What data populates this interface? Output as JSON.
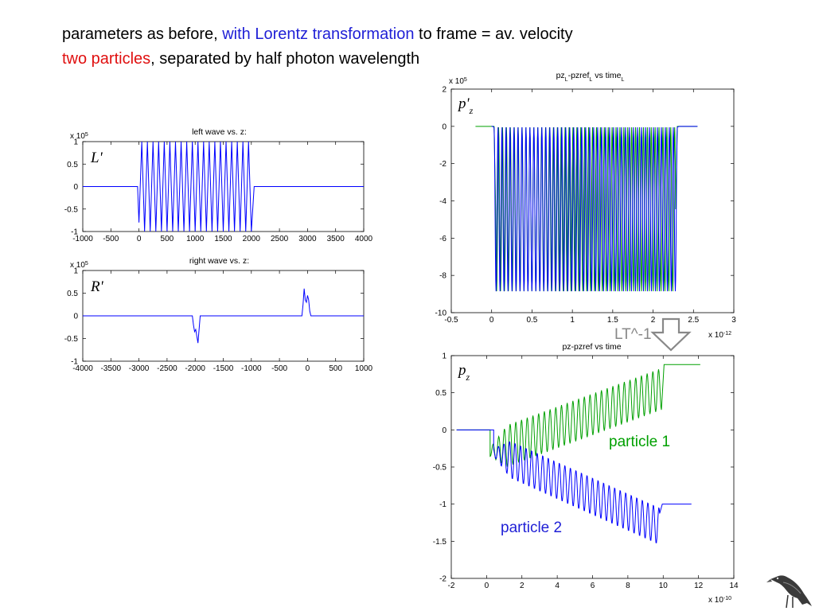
{
  "heading": {
    "line1_a": "parameters as before, ",
    "line1_b": "with Lorentz transformation",
    "line1_c": " to frame = av. velocity",
    "line2_a": "two particles",
    "line2_b": ", separated by half photon wavelength"
  },
  "annotations": {
    "lt_arrow_label": "LT^-1",
    "particle1": "particle 1",
    "particle2": "particle 2"
  },
  "colors": {
    "blue_series": "#0000ff",
    "green_series": "#00a000",
    "heading_blue": "#1f1fd6",
    "heading_red": "#e01010",
    "arrow": "#888888"
  },
  "chart_data": [
    {
      "id": "left",
      "type": "line",
      "title": "left wave vs. z:",
      "inset_label": "L'",
      "exponent": "x 10^5",
      "xlim": [
        -1000,
        4000
      ],
      "ylim": [
        -1,
        1
      ],
      "xticks": [
        -1000,
        -500,
        0,
        500,
        1000,
        1500,
        2000,
        2500,
        3000,
        3500,
        4000
      ],
      "yticks": [
        1,
        0.5,
        0,
        -0.5,
        -1
      ],
      "series": [
        {
          "color": "#0000ff",
          "points": [
            [
              -1000,
              0
            ],
            [
              -25,
              0
            ],
            [
              0,
              -0.8
            ],
            [
              50,
              1
            ],
            [
              100,
              -1
            ],
            [
              150,
              1
            ],
            [
              200,
              -1
            ],
            [
              250,
              1
            ],
            [
              300,
              -1
            ],
            [
              350,
              1
            ],
            [
              400,
              -1
            ],
            [
              450,
              1
            ],
            [
              500,
              -1
            ],
            [
              550,
              1
            ],
            [
              600,
              -1
            ],
            [
              650,
              1
            ],
            [
              700,
              -1
            ],
            [
              750,
              1
            ],
            [
              800,
              -1
            ],
            [
              850,
              1
            ],
            [
              900,
              -1
            ],
            [
              950,
              1
            ],
            [
              1000,
              -1
            ],
            [
              1050,
              1
            ],
            [
              1100,
              -1
            ],
            [
              1150,
              1
            ],
            [
              1200,
              -1
            ],
            [
              1250,
              1
            ],
            [
              1300,
              -1
            ],
            [
              1350,
              1
            ],
            [
              1400,
              -1
            ],
            [
              1450,
              1
            ],
            [
              1500,
              -1
            ],
            [
              1550,
              1
            ],
            [
              1600,
              -1
            ],
            [
              1650,
              1
            ],
            [
              1700,
              -1
            ],
            [
              1750,
              1
            ],
            [
              1800,
              -1
            ],
            [
              1850,
              1
            ],
            [
              1900,
              -1
            ],
            [
              1950,
              1
            ],
            [
              2000,
              -1
            ],
            [
              2050,
              0
            ],
            [
              4000,
              0
            ]
          ]
        }
      ]
    },
    {
      "id": "right",
      "type": "line",
      "title": "right wave vs. z:",
      "inset_label": "R'",
      "exponent": "x 10^5",
      "xlim": [
        -4000,
        1000
      ],
      "ylim": [
        -1,
        1
      ],
      "xticks": [
        -4000,
        -3500,
        -3000,
        -2500,
        -2000,
        -1500,
        -1000,
        -500,
        0,
        500,
        1000
      ],
      "yticks": [
        1,
        0.5,
        0,
        -0.5,
        -1
      ],
      "series": [
        {
          "color": "#0000ff",
          "points": [
            [
              -4000,
              0
            ],
            [
              -2050,
              0
            ],
            [
              -2030,
              -0.2
            ],
            [
              -2010,
              -0.35
            ],
            [
              -1990,
              -0.3
            ],
            [
              -1970,
              -0.45
            ],
            [
              -1950,
              -0.6
            ],
            [
              -1930,
              -0.3
            ],
            [
              -1910,
              0
            ],
            [
              -100,
              0
            ],
            [
              -80,
              0.25
            ],
            [
              -60,
              0.6
            ],
            [
              -40,
              0.35
            ],
            [
              -20,
              0.3
            ],
            [
              0,
              0.45
            ],
            [
              20,
              0.35
            ],
            [
              40,
              0.1
            ],
            [
              60,
              0
            ],
            [
              1000,
              0
            ]
          ]
        }
      ]
    },
    {
      "id": "top-right",
      "type": "line",
      "title": "pzL-pzrefL vs timeL",
      "inset_label": "p'z",
      "exponent": "x 10^5",
      "x_exponent": "x 10^-12",
      "xlim": [
        -0.5,
        3
      ],
      "ylim": [
        -10,
        2
      ],
      "xticks": [
        -0.5,
        0,
        0.5,
        1,
        1.5,
        2,
        2.5,
        3
      ],
      "yticks": [
        2,
        0,
        -2,
        -4,
        -6,
        -8,
        -10
      ],
      "series": [
        {
          "color": "#00a000",
          "points": [
            [
              -0.2,
              0
            ],
            [
              0,
              0
            ],
            [
              0.05,
              -8.9
            ],
            [
              2.25,
              -8.9
            ],
            [
              2.3,
              0
            ],
            [
              2.55,
              0
            ]
          ],
          "oscillating": {
            "x0": 0.05,
            "x1": 2.28,
            "cycles": 46,
            "phase": 0.5,
            "envelope": "green"
          }
        },
        {
          "color": "#0000ff",
          "points": [
            [
              0.02,
              0
            ],
            [
              0.05,
              -8.9
            ],
            [
              2.25,
              -8.9
            ],
            [
              2.3,
              0
            ],
            [
              2.55,
              0
            ]
          ],
          "oscillating": {
            "x0": 0.03,
            "x1": 2.3,
            "cycles": 46,
            "phase": 0.0,
            "envelope": "blue"
          }
        }
      ]
    },
    {
      "id": "bottom-right",
      "type": "line",
      "title": "pz-pzref vs time",
      "inset_label": "pz",
      "x_exponent": "x 10^-10",
      "xlim": [
        -2,
        14
      ],
      "ylim": [
        -2,
        1
      ],
      "xticks": [
        -2,
        0,
        2,
        4,
        6,
        8,
        10,
        12,
        14
      ],
      "yticks": [
        1,
        0.5,
        0,
        -0.5,
        -1,
        -1.5,
        -2
      ],
      "series": [
        {
          "name": "particle 1",
          "color": "#00a000",
          "baseline_start": 0,
          "baseline_end": 0.88,
          "osc_x0": 0.2,
          "osc_x1": 9.9,
          "cycles": 30,
          "offset_start": -0.3,
          "offset_end": 0.55,
          "amplitude": 0.28
        },
        {
          "name": "particle 2",
          "color": "#0000ff",
          "baseline_start": 0,
          "baseline_end": -1.0,
          "osc_x0": 0.4,
          "osc_x1": 9.8,
          "cycles": 30,
          "offset_start": -0.3,
          "offset_end": -1.3,
          "amplitude": 0.25
        }
      ]
    }
  ]
}
